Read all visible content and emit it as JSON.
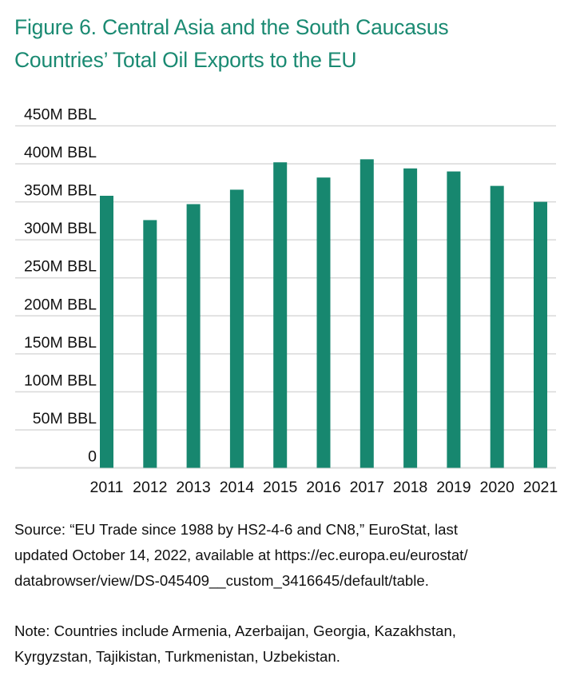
{
  "title": [
    "Figure 6. Central Asia and the South Caucasus",
    "Countries’ Total Oil Exports to the EU"
  ],
  "chart_data": {
    "type": "bar",
    "title": "Figure 6. Central Asia and the South Caucasus Countries’ Total Oil Exports to the EU",
    "xlabel": "",
    "ylabel": "",
    "categories": [
      "2011",
      "2012",
      "2013",
      "2014",
      "2015",
      "2016",
      "2017",
      "2018",
      "2019",
      "2020",
      "2021"
    ],
    "values": [
      358,
      326,
      347,
      366,
      402,
      382,
      406,
      394,
      390,
      371,
      350
    ],
    "unit": "M BBL",
    "ylim": [
      0,
      450
    ],
    "yticks": [
      0,
      50,
      100,
      150,
      200,
      250,
      300,
      350,
      400,
      450
    ],
    "ytick_labels": [
      "0",
      "50M BBL",
      "100M BBL",
      "150M BBL",
      "200M BBL",
      "250M BBL",
      "300M BBL",
      "350M BBL",
      "400M BBL",
      "450M BBL"
    ],
    "grid": true,
    "legend": "none",
    "bar_color": "#17876f",
    "grid_color": "#d9d9d9"
  },
  "source": [
    "Source: “EU Trade since 1988 by HS2-4-6 and CN8,” EuroStat, last",
    "updated October 14, 2022, available at https://ec.europa.eu/eurostat/",
    "databrowser/view/DS-045409__custom_3416645/default/table."
  ],
  "note": [
    "Note: Countries include Armenia, Azerbaijan, Georgia, Kazakhstan,",
    "Kyrgyzstan, Tajikistan, Turkmenistan, Uzbekistan."
  ]
}
